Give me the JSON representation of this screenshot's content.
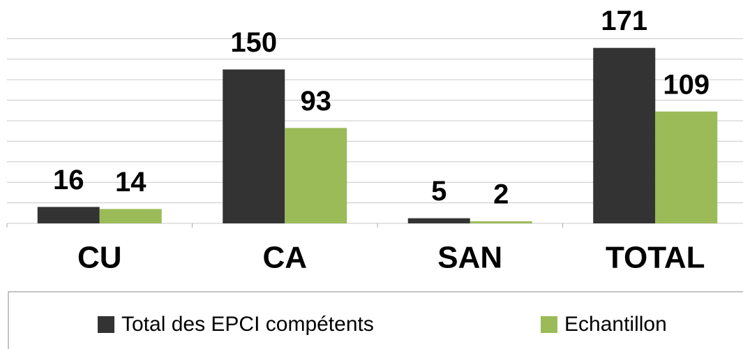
{
  "chart_data": {
    "type": "bar",
    "categories": [
      "CU",
      "CA",
      "SAN",
      "TOTAL"
    ],
    "series": [
      {
        "name": "Total des EPCI compétents",
        "color": "#333333",
        "values": [
          16,
          150,
          5,
          171
        ]
      },
      {
        "name": "Echantillon",
        "color": "#9bbb59",
        "values": [
          14,
          93,
          2,
          109
        ]
      }
    ],
    "ylim": [
      0,
      200
    ],
    "yticks": [
      0,
      20,
      40,
      60,
      80,
      100,
      120,
      140,
      160,
      180
    ],
    "grid": true
  }
}
